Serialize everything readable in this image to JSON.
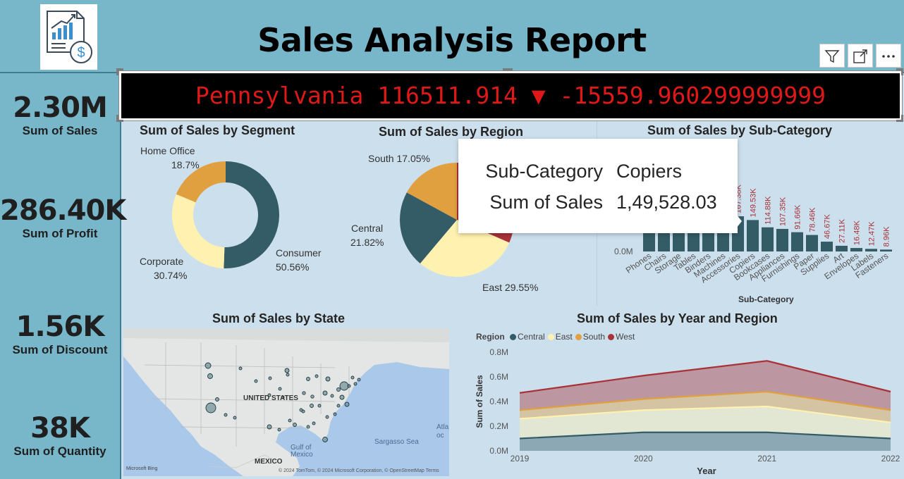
{
  "header": {
    "title": "Sales Analysis Report",
    "logo_icon": "sales-report-icon",
    "buttons": [
      {
        "icon": "filter-icon"
      },
      {
        "icon": "focus-mode-icon"
      },
      {
        "icon": "more-options-icon"
      }
    ]
  },
  "kpis": [
    {
      "value": "2.30M",
      "label": "Sum of Sales"
    },
    {
      "value": "286.40K",
      "label": "Sum of Profit"
    },
    {
      "value": "1.56K",
      "label": "Sum of Discount"
    },
    {
      "value": "38K",
      "label": "Sum of Quantity"
    }
  ],
  "ticker": {
    "text": "Pennsylvania 116511.914 ▼ -15559.960299999999",
    "color": "#e01818"
  },
  "tooltip": {
    "key1": "Sub-Category",
    "val1": "Copiers",
    "key2": "Sum of Sales",
    "val2": "1,49,528.03"
  },
  "chart_data": [
    {
      "type": "pie",
      "variant": "donut",
      "title": "Sum of Sales by Segment",
      "slices": [
        {
          "name": "Consumer",
          "percent": 50.56,
          "label": "50.56%",
          "color": "#345c67"
        },
        {
          "name": "Corporate",
          "percent": 30.74,
          "label": "30.74%",
          "color": "#fff2b0"
        },
        {
          "name": "Home Office",
          "percent": 18.7,
          "label": "18.7%",
          "color": "#e0a040"
        }
      ]
    },
    {
      "type": "pie",
      "title": "Sum of Sales by Region",
      "slices": [
        {
          "name": "West",
          "percent": 31.58,
          "color": "#a83238"
        },
        {
          "name": "East",
          "percent": 29.55,
          "label": "East 29.55%",
          "color": "#fff2b0"
        },
        {
          "name": "Central",
          "percent": 21.82,
          "label": "21.82%",
          "color": "#345c67"
        },
        {
          "name": "South",
          "percent": 17.05,
          "label": "South 17.05%",
          "color": "#e0a040"
        }
      ]
    },
    {
      "type": "bar",
      "title": "Sum of Sales by Sub-Category",
      "xlabel": "Sub-Category",
      "ylabel": "",
      "y_tick": "0.0M",
      "categories": [
        "Phones",
        "Chairs",
        "Storage",
        "Tables",
        "Binders",
        "Machines",
        "Accessories",
        "Copiers",
        "Bookcases",
        "Appliances",
        "Furnishings",
        "Paper",
        "Supplies",
        "Art",
        "Envelopes",
        "Labels",
        "Fasteners"
      ],
      "values": [
        330.01,
        328.45,
        223.84,
        206.97,
        203.41,
        189.24,
        167.38,
        149.53,
        114.88,
        107.35,
        91.66,
        78.46,
        46.67,
        27.11,
        16.48,
        12.47,
        8.96
      ],
      "value_labels": [
        "",
        "",
        "",
        "",
        "",
        "",
        "167.38K",
        "149.53K",
        "114.88K",
        "107.35K",
        "91.66K",
        "78.46K",
        "46.67K",
        "27.11K",
        "16.48K",
        "12.47K",
        "8.96K"
      ],
      "color": "#345c67",
      "label_color": "#a83238"
    },
    {
      "type": "area",
      "stacked": true,
      "title": "Sum of Sales by Year and Region",
      "xlabel": "Year",
      "ylabel": "Sum of Sales",
      "legend_title": "Region",
      "x": [
        "2019",
        "2020",
        "2021",
        "2022"
      ],
      "y_ticks": [
        "0.0M",
        "0.2M",
        "0.4M",
        "0.6M",
        "0.8M"
      ],
      "ylim": [
        0,
        0.8
      ],
      "series": [
        {
          "name": "Central",
          "values": [
            0.1,
            0.15,
            0.15,
            0.1
          ],
          "color": "#345c67"
        },
        {
          "name": "East",
          "values": [
            0.16,
            0.18,
            0.21,
            0.13
          ],
          "color": "#fff2b0"
        },
        {
          "name": "South",
          "values": [
            0.07,
            0.09,
            0.12,
            0.1
          ],
          "color": "#e0a040"
        },
        {
          "name": "West",
          "values": [
            0.14,
            0.19,
            0.25,
            0.15
          ],
          "color": "#a83238"
        }
      ]
    }
  ],
  "map": {
    "title": "Sum of Sales by State",
    "labels": {
      "usa": "UNITED STATES",
      "mexico": "MEXICO",
      "gulf": "Gulf of\nMexico",
      "sargasso": "Sargasso Sea",
      "atlantic": "Atla\noc",
      "credits": "© 2024 TomTom, © 2024 Microsoft Corporation, © OpenStreetMap  Terms",
      "bing": "Microsoft Bing"
    }
  }
}
